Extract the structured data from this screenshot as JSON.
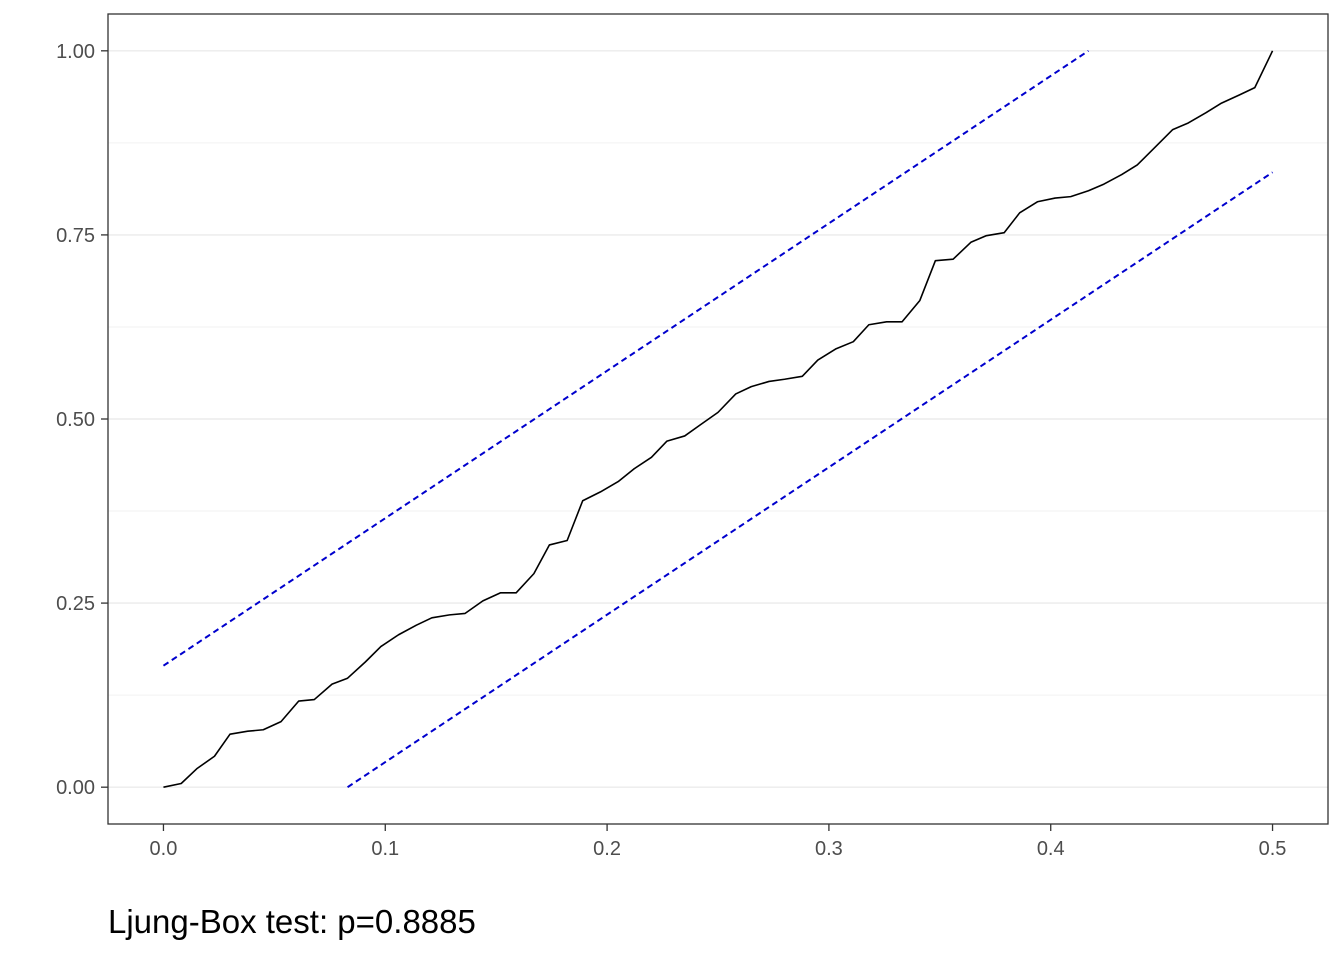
{
  "chart_data": {
    "type": "line",
    "xlim": [
      -0.025,
      0.525
    ],
    "ylim": [
      -0.05,
      1.05
    ],
    "grid": true,
    "legend": "none",
    "x_ticks": [
      0.0,
      0.1,
      0.2,
      0.3,
      0.4,
      0.5
    ],
    "x_tick_labels": [
      "0.0",
      "0.1",
      "0.2",
      "0.3",
      "0.4",
      "0.5"
    ],
    "y_ticks": [
      0.0,
      0.25,
      0.5,
      0.75,
      1.0
    ],
    "y_tick_labels": [
      "0.00",
      "0.25",
      "0.50",
      "0.75",
      "1.00"
    ],
    "series": [
      {
        "style": "solid",
        "color": "#000000",
        "points": [
          [
            0.0,
            0.0
          ],
          [
            0.008,
            0.005
          ],
          [
            0.015,
            0.025
          ],
          [
            0.023,
            0.042
          ],
          [
            0.03,
            0.072
          ],
          [
            0.038,
            0.076
          ],
          [
            0.045,
            0.078
          ],
          [
            0.053,
            0.089
          ],
          [
            0.061,
            0.117
          ],
          [
            0.068,
            0.119
          ],
          [
            0.076,
            0.14
          ],
          [
            0.083,
            0.148
          ],
          [
            0.091,
            0.17
          ],
          [
            0.098,
            0.191
          ],
          [
            0.106,
            0.207
          ],
          [
            0.114,
            0.22
          ],
          [
            0.121,
            0.23
          ],
          [
            0.129,
            0.234
          ],
          [
            0.136,
            0.236
          ],
          [
            0.144,
            0.253
          ],
          [
            0.152,
            0.264
          ],
          [
            0.159,
            0.264
          ],
          [
            0.167,
            0.29
          ],
          [
            0.174,
            0.329
          ],
          [
            0.182,
            0.335
          ],
          [
            0.189,
            0.389
          ],
          [
            0.197,
            0.401
          ],
          [
            0.205,
            0.415
          ],
          [
            0.212,
            0.432
          ],
          [
            0.22,
            0.448
          ],
          [
            0.227,
            0.47
          ],
          [
            0.235,
            0.477
          ],
          [
            0.242,
            0.492
          ],
          [
            0.25,
            0.509
          ],
          [
            0.258,
            0.534
          ],
          [
            0.265,
            0.544
          ],
          [
            0.273,
            0.551
          ],
          [
            0.28,
            0.554
          ],
          [
            0.288,
            0.558
          ],
          [
            0.295,
            0.58
          ],
          [
            0.303,
            0.595
          ],
          [
            0.311,
            0.605
          ],
          [
            0.318,
            0.628
          ],
          [
            0.326,
            0.632
          ],
          [
            0.333,
            0.632
          ],
          [
            0.341,
            0.661
          ],
          [
            0.348,
            0.715
          ],
          [
            0.356,
            0.717
          ],
          [
            0.364,
            0.74
          ],
          [
            0.371,
            0.749
          ],
          [
            0.379,
            0.753
          ],
          [
            0.386,
            0.78
          ],
          [
            0.394,
            0.795
          ],
          [
            0.402,
            0.8
          ],
          [
            0.409,
            0.802
          ],
          [
            0.417,
            0.81
          ],
          [
            0.424,
            0.819
          ],
          [
            0.432,
            0.832
          ],
          [
            0.439,
            0.845
          ],
          [
            0.447,
            0.869
          ],
          [
            0.455,
            0.893
          ],
          [
            0.462,
            0.902
          ],
          [
            0.47,
            0.916
          ],
          [
            0.477,
            0.929
          ],
          [
            0.485,
            0.94
          ],
          [
            0.492,
            0.95
          ],
          [
            0.5,
            1.0
          ]
        ]
      },
      {
        "style": "dashed",
        "color": "#0000cd",
        "points": [
          [
            0.0,
            0.165
          ],
          [
            0.417,
            1.0
          ]
        ]
      },
      {
        "style": "dashed",
        "color": "#0000cd",
        "points": [
          [
            0.083,
            0.0
          ],
          [
            0.5,
            0.835
          ]
        ]
      }
    ]
  },
  "caption": "Ljung-Box test: p=0.8885"
}
